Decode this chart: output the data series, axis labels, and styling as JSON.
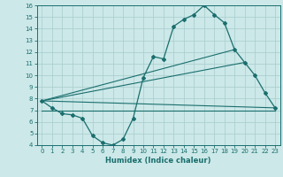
{
  "title": "",
  "xlabel": "Humidex (Indice chaleur)",
  "ylabel": "",
  "xlim": [
    -0.5,
    23.5
  ],
  "ylim": [
    4,
    16
  ],
  "yticks": [
    4,
    5,
    6,
    7,
    8,
    9,
    10,
    11,
    12,
    13,
    14,
    15,
    16
  ],
  "xticks": [
    0,
    1,
    2,
    3,
    4,
    5,
    6,
    7,
    8,
    9,
    10,
    11,
    12,
    13,
    14,
    15,
    16,
    17,
    18,
    19,
    20,
    21,
    22,
    23
  ],
  "bg_color": "#cce8e8",
  "line_color": "#1a6e6e",
  "series1_x": [
    0,
    1,
    2,
    3,
    4,
    5,
    6,
    7,
    8,
    9,
    10,
    11,
    12,
    13,
    14,
    15,
    16,
    17,
    18,
    19,
    20,
    21,
    22,
    23
  ],
  "series1_y": [
    7.8,
    7.2,
    6.7,
    6.6,
    6.3,
    4.8,
    4.2,
    4.0,
    4.5,
    6.3,
    9.8,
    11.6,
    11.4,
    14.2,
    14.8,
    15.2,
    16.0,
    15.2,
    14.5,
    12.2,
    11.1,
    10.0,
    8.5,
    7.2
  ],
  "series2_x": [
    0,
    23
  ],
  "series2_y": [
    7.8,
    7.2
  ],
  "series3_x": [
    0,
    19
  ],
  "series3_y": [
    7.8,
    12.2
  ],
  "series4_x": [
    0,
    20
  ],
  "series4_y": [
    7.8,
    11.1
  ],
  "series5_x": [
    0,
    23
  ],
  "series5_y": [
    7.0,
    7.0
  ]
}
